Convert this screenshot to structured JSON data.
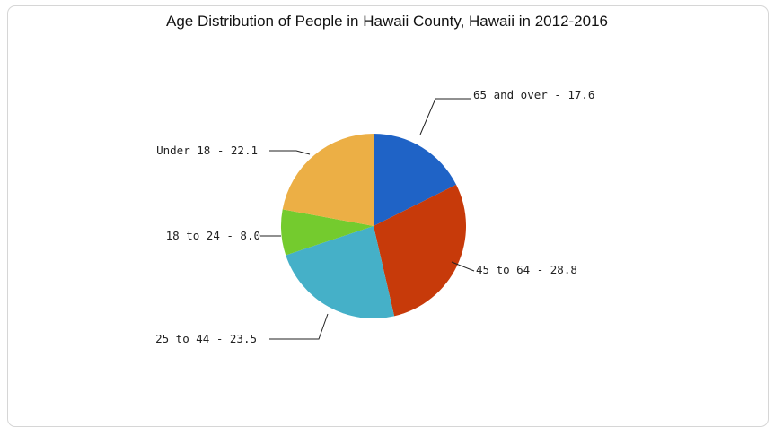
{
  "chart_data": {
    "type": "pie",
    "title": "Age Distribution of People in Hawaii County, Hawaii in 2012-2016",
    "slices": [
      {
        "label": "65 and over - 17.6",
        "value": 17.6,
        "color": "#1f63c6"
      },
      {
        "label": "45 to 64 - 28.8",
        "value": 28.8,
        "color": "#c73a0a"
      },
      {
        "label": "25 to 44 - 23.5",
        "value": 23.5,
        "color": "#45b0c8"
      },
      {
        "label": "18 to 24 - 8.0",
        "value": 8.0,
        "color": "#74cb2e"
      },
      {
        "label": "Under 18 - 22.1",
        "value": 22.1,
        "color": "#ecaf45"
      }
    ],
    "start_angle": "12 o'clock",
    "direction": "clockwise",
    "legend": "none"
  }
}
